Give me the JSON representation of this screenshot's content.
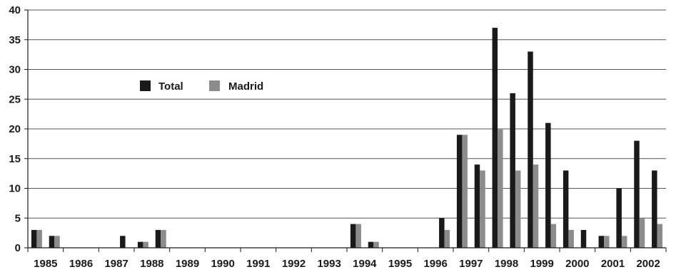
{
  "chart_data": {
    "type": "bar",
    "title": "",
    "xlabel": "",
    "ylabel": "",
    "ylim": [
      0,
      40
    ],
    "yticks": [
      0,
      5,
      10,
      15,
      20,
      25,
      30,
      35,
      40
    ],
    "year_labels": [
      "1985",
      "1986",
      "1987",
      "1988",
      "1989",
      "1990",
      "1991",
      "1992",
      "1993",
      "1994",
      "1995",
      "1996",
      "1997",
      "1998",
      "1999",
      "2000",
      "2001",
      "2002"
    ],
    "grid": true,
    "legend": {
      "placement": "upper-left",
      "entries": [
        "Total",
        "Madrid"
      ]
    },
    "categories": [
      "1984-2",
      "1985-1",
      "1985-2",
      "1986-1",
      "1986-2",
      "1987-1",
      "1987-2",
      "1988-1",
      "1988-2",
      "1989-1",
      "1989-2",
      "1990-1",
      "1990-2",
      "1991-1",
      "1991-2",
      "1992-1",
      "1992-2",
      "1993-1",
      "1993-2",
      "1994-1",
      "1994-2",
      "1995-1",
      "1995-2",
      "1996-1",
      "1996-2",
      "1997-1",
      "1997-2",
      "1998-1",
      "1998-2",
      "1999-1",
      "1999-2",
      "2000-1",
      "2000-2",
      "2001-1",
      "2001-2",
      "2002-1"
    ],
    "series": [
      {
        "name": "Total",
        "color": "#1a1a1a",
        "values": [
          3,
          2,
          0,
          0,
          0,
          2,
          1,
          3,
          0,
          0,
          0,
          0,
          0,
          0,
          0,
          0,
          0,
          0,
          4,
          1,
          0,
          0,
          0,
          5,
          19,
          14,
          37,
          26,
          33,
          21,
          13,
          3,
          2,
          10,
          18,
          13
        ]
      },
      {
        "name": "Madrid",
        "color": "#8c8c8c",
        "values": [
          3,
          2,
          0,
          0,
          0,
          0,
          1,
          3,
          0,
          0,
          0,
          0,
          0,
          0,
          0,
          0,
          0,
          0,
          4,
          1,
          0,
          0,
          0,
          3,
          19,
          13,
          20,
          13,
          14,
          4,
          3,
          0,
          2,
          2,
          5,
          4
        ]
      }
    ]
  }
}
